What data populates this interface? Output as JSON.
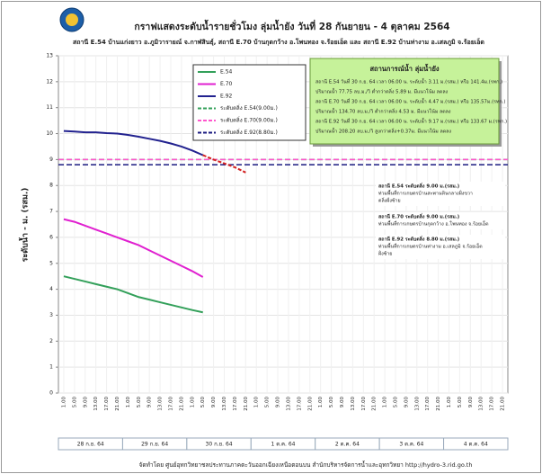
{
  "chart_data": {
    "type": "line",
    "title": "กราฟแสดงระดับน้ำรายชั่วโมง ลุ่มน้ำยัง วันที่ 28 กันยายน - 4 ตุลาคม 2564",
    "subtitle": "สถานี E.54 บ้านแก่งยาว อ.ภูมิวารายณ์ จ.กาฬสินธุ์, สถานี E.70 บ้านกุดกว้าง อ.โพนทอง จ.ร้อยเอ็ด และ สถานี E.92 บ้านท่างาม อ.เสลภูมิ จ.ร้อยเอ็ด",
    "y_label": "ระดับน้ำ - ม. (รสม.)",
    "categories": [
      "1.00",
      "5.00",
      "9.00",
      "13.00",
      "17.00",
      "21.00",
      "1.00",
      "5.00",
      "9.00",
      "13.00",
      "17.00",
      "21.00",
      "1.00",
      "5.00",
      "9.00",
      "13.00",
      "17.00",
      "21.00",
      "1.00",
      "5.00",
      "9.00",
      "13.00",
      "17.00",
      "21.00",
      "1.00",
      "5.00",
      "9.00",
      "13.00",
      "17.00",
      "21.00",
      "1.00",
      "5.00",
      "9.00",
      "13.00",
      "17.00",
      "21.00",
      "1.00",
      "5.00",
      "9.00",
      "13.00",
      "17.00",
      "21.00"
    ],
    "days": [
      "28 ก.ย. 64",
      "29 ก.ย. 64",
      "30 ก.ย. 64",
      "1 ต.ค. 64",
      "2 ต.ค. 64",
      "3 ต.ค. 64",
      "4 ต.ค. 64"
    ],
    "ylim": [
      0,
      13
    ],
    "yticks": [
      0,
      1,
      2,
      3,
      4,
      5,
      6,
      7,
      8,
      9,
      10,
      11,
      12,
      13
    ],
    "grid": true,
    "series": [
      {
        "name": "E.54",
        "color": "#33a05a",
        "values": [
          4.5,
          4.4,
          4.3,
          4.2,
          4.1,
          4.0,
          3.85,
          3.7,
          3.6,
          3.5,
          3.4,
          3.3,
          3.2,
          3.11,
          null,
          null,
          null,
          null,
          null,
          null,
          null,
          null,
          null,
          null,
          null,
          null,
          null,
          null,
          null,
          null,
          null,
          null,
          null,
          null,
          null,
          null,
          null,
          null,
          null,
          null,
          null,
          null
        ]
      },
      {
        "name": "E.70",
        "color": "#e020d0",
        "values": [
          6.7,
          6.6,
          6.45,
          6.3,
          6.15,
          6.0,
          5.85,
          5.7,
          5.5,
          5.3,
          5.1,
          4.9,
          4.7,
          4.47,
          null,
          null,
          null,
          null,
          null,
          null,
          null,
          null,
          null,
          null,
          null,
          null,
          null,
          null,
          null,
          null,
          null,
          null,
          null,
          null,
          null,
          null,
          null,
          null,
          null,
          null,
          null,
          null
        ]
      },
      {
        "name": "E.92",
        "color": "#22228f",
        "values": [
          10.1,
          10.08,
          10.05,
          10.05,
          10.02,
          10.0,
          9.95,
          9.88,
          9.8,
          9.72,
          9.62,
          9.5,
          9.35,
          9.17,
          null,
          null,
          null,
          null,
          null,
          null,
          null,
          null,
          null,
          null,
          null,
          null,
          null,
          null,
          null,
          null,
          null,
          null,
          null,
          null,
          null,
          null,
          null,
          null,
          null,
          null,
          null,
          null
        ]
      }
    ],
    "forecast": {
      "color": "#d42020",
      "values": [
        null,
        null,
        null,
        null,
        null,
        null,
        null,
        null,
        null,
        null,
        null,
        null,
        null,
        9.17,
        9.0,
        8.85,
        8.7,
        8.5,
        null,
        null,
        null,
        null,
        null,
        null,
        null,
        null,
        null,
        null,
        null,
        null,
        null,
        null,
        null,
        null,
        null,
        null,
        null,
        null,
        null,
        null,
        null,
        null
      ]
    },
    "reference_lines": [
      {
        "name": "ระดับตลิ่ง E.54(9.00ม.)",
        "value": 9.0,
        "color": "#33a05a"
      },
      {
        "name": "ระดับตลิ่ง E.70(9.00ม.)",
        "value": 9.0,
        "color": "#ff55cc"
      },
      {
        "name": "ระดับตลิ่ง E.92(8.80ม.)",
        "value": 8.8,
        "color": "#1a1a80"
      }
    ],
    "info_box": {
      "title": "สถานการณ์น้ำ ลุ่มน้ำยัง",
      "lines": [
        "สถานี E.54 วันที่ 30 ก.ย. 64 เวลา 06.00 น. ระดับน้ำ 3.11 ม.(รสม.) หรือ 141.4ม.(รทก.)",
        "ปริมาณน้ำ 77.75 ลบ.ม./วิ ต่ำกว่าตลิ่ง 5.89 ม. มีแนวโน้ม ลดลง",
        "สถานี E.70 วันที่ 30 ก.ย. 64 เวลา 06.00 น. ระดับน้ำ 4.47 ม.(รสม.) หรือ 135.57ม.(รทก.)",
        "ปริมาณน้ำ 134.70 ลบ.ม./วิ ต่ำกว่าตลิ่ง 4.53 ม. มีแนวโน้ม ลดลง",
        "สถานี E.92 วันที่ 30 ก.ย. 64 เวลา 06.00 น. ระดับน้ำ 9.17 ม.(รสม.) หรือ 133.67 ม.(รทก.)",
        "ปริมาณน้ำ 208.20 ลบ.ม./วิ สูงกว่าตลิ่ง+0.37ม. มีแนวโน้ม ลดลง"
      ]
    },
    "annotations": [
      {
        "color": "#1f7a3a",
        "lines": [
          "สถานี E.54 ระดับตลิ่ง 9.00 ม.(รสม.)",
          "ท่วมพื้นที่การเกษตรบ้านสะพานหินกลางฝั่งขวา",
          "ตลิ่งฝั่งซ้าย"
        ]
      },
      {
        "color": "#c010b0",
        "lines": [
          "สถานี E.70 ระดับตลิ่ง 9.00 ม.(รสม.)",
          "ท่วมพื้นที่การเกษตรบ้านกุดกว้าง อ.โพนทอง จ.ร้อยเอ็ด"
        ]
      },
      {
        "color": "#1a1a80",
        "lines": [
          "สถานี E.92 ระดับตลิ่ง 8.80 ม.(รสม.)",
          "ท่วมพื้นที่การเกษตรบ้านท่างาม อ.เสลภูมิ จ.ร้อยเอ็ด",
          "ฝั่งซ้าย"
        ]
      }
    ],
    "footer": "จัดทำโดย ศูนย์อุทกวิทยาชลประทานภาคตะวันออกเฉียงเหนือตอนบน สำนักบริหารจัดการน้ำและอุทกวิทยา   http://hydro-3.rid.go.th"
  }
}
